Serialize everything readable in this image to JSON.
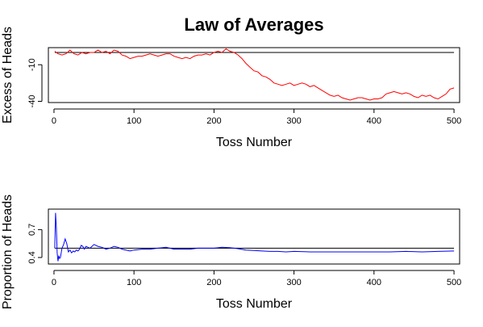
{
  "title": "Law of Averages",
  "chart_data": [
    {
      "type": "line",
      "xlabel": "Toss Number",
      "ylabel": "Excess of Heads",
      "xlim": [
        -7,
        507
      ],
      "ylim": [
        -41,
        4
      ],
      "xticks": [
        0,
        100,
        200,
        300,
        400,
        500
      ],
      "yticks": [
        -10,
        -40
      ],
      "reference_line": 0,
      "series": [
        {
          "color": "#ff0000",
          "x": [
            1,
            5,
            10,
            15,
            20,
            25,
            30,
            35,
            40,
            45,
            50,
            55,
            60,
            65,
            70,
            75,
            80,
            85,
            90,
            95,
            100,
            105,
            110,
            115,
            120,
            125,
            130,
            135,
            140,
            145,
            150,
            155,
            160,
            165,
            170,
            175,
            180,
            185,
            190,
            195,
            200,
            205,
            210,
            215,
            220,
            225,
            230,
            235,
            240,
            245,
            250,
            255,
            260,
            265,
            270,
            275,
            280,
            285,
            290,
            295,
            300,
            305,
            310,
            315,
            320,
            325,
            330,
            335,
            340,
            345,
            350,
            355,
            360,
            365,
            370,
            375,
            380,
            385,
            390,
            395,
            400,
            405,
            410,
            415,
            420,
            425,
            430,
            435,
            440,
            445,
            450,
            455,
            460,
            465,
            470,
            475,
            480,
            485,
            490,
            495,
            500
          ],
          "values": [
            1,
            -1,
            -2,
            -1,
            2,
            -1,
            -2,
            0,
            -1,
            0,
            0,
            2,
            0,
            1,
            -1,
            2,
            1,
            -2,
            -3,
            -5,
            -4,
            -3,
            -3,
            -2,
            -1,
            -2,
            -3,
            -2,
            -1,
            -1,
            -3,
            -4,
            -5,
            -4,
            -5,
            -3,
            -2,
            -2,
            -1,
            -2,
            0,
            1,
            0,
            3,
            1,
            0,
            -2,
            -5,
            -9,
            -12,
            -15,
            -16,
            -19,
            -20,
            -22,
            -25,
            -26,
            -27,
            -26,
            -25,
            -27,
            -26,
            -25,
            -26,
            -28,
            -27,
            -29,
            -31,
            -33,
            -35,
            -36,
            -35,
            -37,
            -38,
            -39,
            -38,
            -37,
            -37,
            -38,
            -39,
            -38,
            -38,
            -37,
            -34,
            -33,
            -32,
            -33,
            -34,
            -33,
            -34,
            -36,
            -37,
            -35,
            -36,
            -35,
            -37,
            -38,
            -36,
            -34,
            -30,
            -29
          ]
        }
      ]
    },
    {
      "type": "line",
      "xlabel": "Toss Number",
      "ylabel": "Proportion of Heads",
      "xlim": [
        -7,
        507
      ],
      "ylim": [
        0.33,
        0.92
      ],
      "xticks": [
        0,
        100,
        200,
        300,
        400,
        500
      ],
      "yticks": [
        0.4,
        0.7
      ],
      "reference_line": 0.5,
      "series": [
        {
          "color": "#0000ff",
          "x": [
            1,
            2,
            3,
            4,
            5,
            6,
            7,
            8,
            9,
            10,
            12,
            14,
            16,
            18,
            20,
            22,
            24,
            26,
            28,
            30,
            32,
            34,
            36,
            38,
            40,
            45,
            50,
            55,
            60,
            65,
            70,
            75,
            80,
            85,
            90,
            95,
            100,
            110,
            120,
            130,
            140,
            150,
            160,
            170,
            180,
            190,
            200,
            210,
            220,
            230,
            240,
            250,
            260,
            270,
            280,
            290,
            300,
            320,
            340,
            360,
            380,
            400,
            420,
            440,
            460,
            480,
            500
          ],
          "values": [
            0.5,
            0.88,
            0.72,
            0.45,
            0.36,
            0.42,
            0.39,
            0.4,
            0.45,
            0.5,
            0.54,
            0.6,
            0.55,
            0.46,
            0.48,
            0.45,
            0.47,
            0.46,
            0.48,
            0.47,
            0.49,
            0.53,
            0.52,
            0.49,
            0.52,
            0.5,
            0.54,
            0.52,
            0.51,
            0.49,
            0.5,
            0.52,
            0.51,
            0.49,
            0.48,
            0.47,
            0.48,
            0.49,
            0.49,
            0.5,
            0.51,
            0.49,
            0.49,
            0.49,
            0.5,
            0.5,
            0.5,
            0.51,
            0.505,
            0.495,
            0.48,
            0.475,
            0.47,
            0.465,
            0.465,
            0.46,
            0.465,
            0.46,
            0.46,
            0.46,
            0.46,
            0.46,
            0.46,
            0.465,
            0.46,
            0.465,
            0.47
          ]
        }
      ]
    }
  ]
}
